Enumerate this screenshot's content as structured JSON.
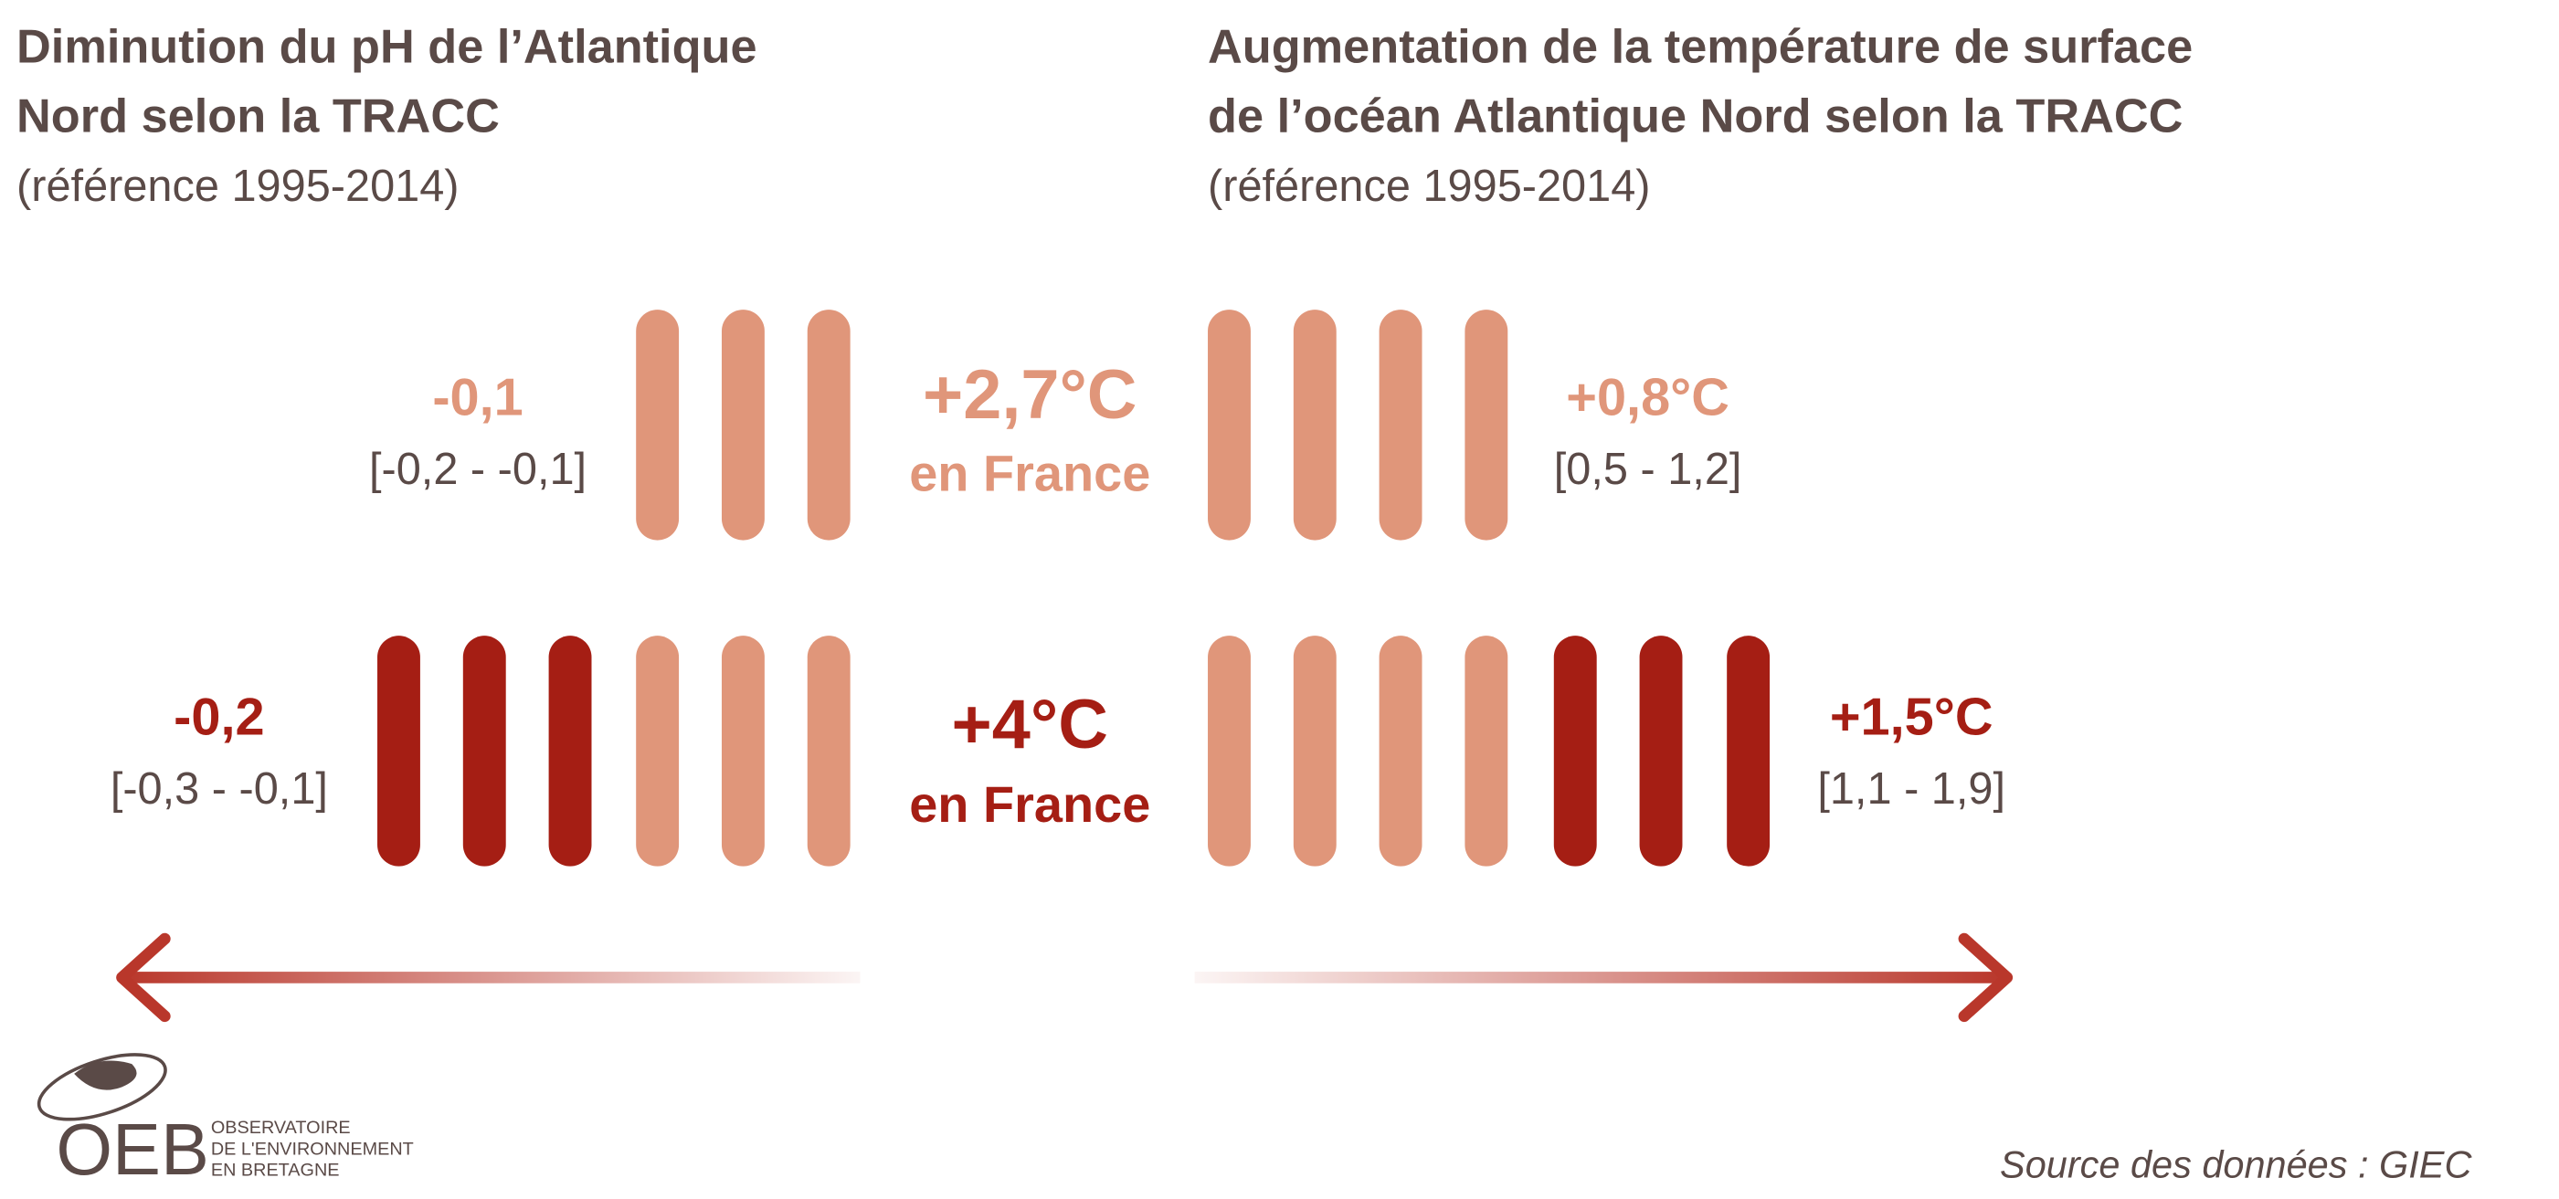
{
  "left": {
    "title_line1": "Diminution du pH de l’Atlantique",
    "title_line2": "Nord selon la TRACC",
    "subtitle": "(référence 1995-2014)"
  },
  "right": {
    "title_line1": "Augmentation de la température de surface",
    "title_line2": "de l’océan Atlantique Nord selon la TRACC",
    "subtitle": "(référence 1995-2014)"
  },
  "scenarios": [
    {
      "center_value": "+2,7°C",
      "center_label": "en France",
      "ph_value": "-0,1",
      "ph_range": "[-0,2 - -0,1]",
      "sst_value": "+0,8°C",
      "sst_range": "[0,5 - 1,2]"
    },
    {
      "center_value": "+4°C",
      "center_label": "en France",
      "ph_value": "-0,2",
      "ph_range": "[-0,3 - -0,1]",
      "sst_value": "+1,5°C",
      "sst_range": "[1,1 - 1,9]"
    }
  ],
  "logo": {
    "letters": "OEB",
    "line1": "OBSERVATOIRE",
    "line2": "DE L'ENVIRONNEMENT",
    "line3": "EN BRETAGNE"
  },
  "source": "Source des données : GIEC"
}
